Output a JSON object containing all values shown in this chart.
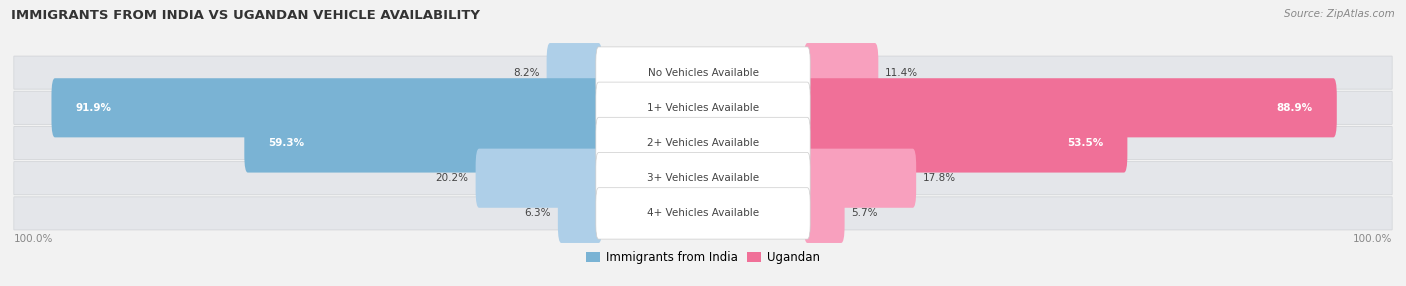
{
  "title": "IMMIGRANTS FROM INDIA VS UGANDAN VEHICLE AVAILABILITY",
  "source": "Source: ZipAtlas.com",
  "categories": [
    "No Vehicles Available",
    "1+ Vehicles Available",
    "2+ Vehicles Available",
    "3+ Vehicles Available",
    "4+ Vehicles Available"
  ],
  "india_values": [
    8.2,
    91.9,
    59.3,
    20.2,
    6.3
  ],
  "ugandan_values": [
    11.4,
    88.9,
    53.5,
    17.8,
    5.7
  ],
  "india_color": "#7ab3d4",
  "ugandan_color": "#f07098",
  "india_color_light": "#aecfe8",
  "ugandan_color_light": "#f8a0be",
  "bg_color": "#f2f2f2",
  "row_bg_even": "#e8eaed",
  "row_bg_odd": "#dfe1e5",
  "label_color": "#444444",
  "title_color": "#333333",
  "source_color": "#888888",
  "figsize": [
    14.06,
    2.86
  ],
  "dpi": 100
}
